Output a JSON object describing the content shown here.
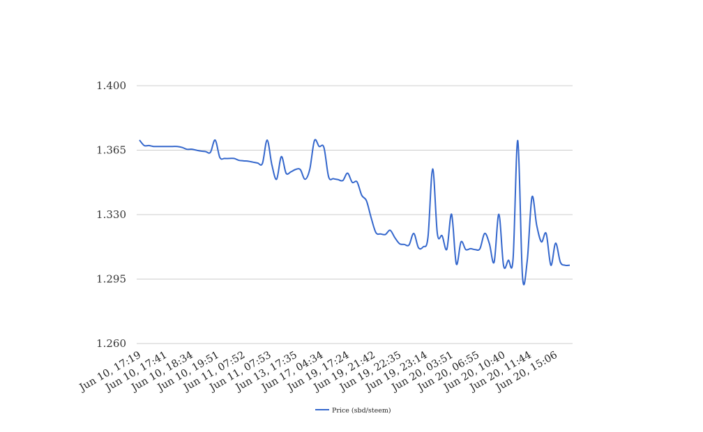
{
  "chart_data": {
    "type": "line",
    "title": "",
    "xlabel": "",
    "ylabel": "",
    "ylim": [
      1.26,
      1.4
    ],
    "yticks": [
      "1.400",
      "1.365",
      "1.330",
      "1.295",
      "1.260"
    ],
    "ytick_values": [
      1.4,
      1.365,
      1.33,
      1.295,
      1.26
    ],
    "xtick_labels": [
      "Jun 10, 17:19",
      "Jun 10, 17:41",
      "Jun 10, 18:34",
      "Jun 10, 19:51",
      "Jun 11, 07:52",
      "Jun 11, 07:53",
      "Jun 13, 17:35",
      "Jun 17, 04:34",
      "Jun 19, 17:24",
      "Jun 19, 21:42",
      "Jun 19, 22:35",
      "Jun 19, 23:14",
      "Jun 20, 03:51",
      "Jun 20, 06:55",
      "Jun 20, 10:40",
      "Jun 20, 11:44",
      "Jun 20, 15:06"
    ],
    "grid": "horizontal",
    "legend_position": "bottom-center",
    "series": [
      {
        "name": "Price (sbd/steem)",
        "color": "#3366cc",
        "values": [
          1.3705,
          1.3675,
          1.3675,
          1.367,
          1.367,
          1.367,
          1.367,
          1.367,
          1.367,
          1.3665,
          1.3655,
          1.3655,
          1.365,
          1.3645,
          1.3642,
          1.3638,
          1.3705,
          1.361,
          1.3605,
          1.3605,
          1.3605,
          1.3595,
          1.3592,
          1.359,
          1.3585,
          1.358,
          1.3578,
          1.3705,
          1.357,
          1.3492,
          1.3615,
          1.3525,
          1.3532,
          1.3545,
          1.3545,
          1.3492,
          1.3545,
          1.3702,
          1.367,
          1.3665,
          1.3505,
          1.3495,
          1.349,
          1.3485,
          1.3525,
          1.3475,
          1.3478,
          1.3405,
          1.3375,
          1.3282,
          1.3202,
          1.3195,
          1.3192,
          1.3215,
          1.3175,
          1.3142,
          1.3138,
          1.3135,
          1.3198,
          1.312,
          1.3125,
          1.3175,
          1.3548,
          1.3195,
          1.3185,
          1.3112,
          1.3302,
          1.3032,
          1.3152,
          1.311,
          1.3115,
          1.311,
          1.3115,
          1.3198,
          1.3142,
          1.3042,
          1.3302,
          1.3022,
          1.3052,
          1.3058,
          1.3702,
          1.2962,
          1.305,
          1.3395,
          1.3242,
          1.3152,
          1.3198,
          1.3025,
          1.3145,
          1.3042,
          1.3025,
          1.3025
        ]
      }
    ]
  }
}
